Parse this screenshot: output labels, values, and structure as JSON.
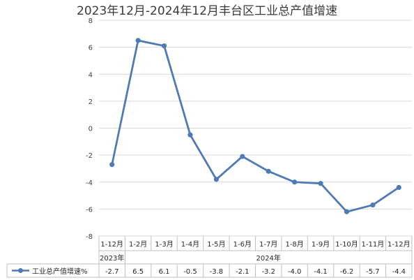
{
  "chart_data": {
    "type": "line",
    "title": "2023年12月-2024年12月丰台区工业总产值增速",
    "ylim": [
      -8,
      8
    ],
    "yticks": [
      8,
      6,
      4,
      2,
      0,
      -2,
      -4,
      -6,
      -8
    ],
    "categories": [
      "1-12月",
      "1-2月",
      "1-3月",
      "1-4月",
      "1-5月",
      "1-6月",
      "1-7月",
      "1-8月",
      "1-9月",
      "1-10月",
      "1-11月",
      "1-12月"
    ],
    "groups": [
      {
        "label": "2023年",
        "start": 0,
        "end": 0
      },
      {
        "label": "2024年",
        "start": 1,
        "end": 11
      }
    ],
    "series": [
      {
        "name": "工业总产值增速%",
        "values": [
          -2.7,
          6.5,
          6.1,
          -0.5,
          -3.8,
          -2.1,
          -3.2,
          -4.0,
          -4.1,
          -6.2,
          -5.7,
          -4.4
        ],
        "labels": [
          "-2.7",
          "6.5",
          "6.1",
          "-0.5",
          "-3.8",
          "-2.1",
          "-3.2",
          "-4.0",
          "-4.1",
          "-6.2",
          "-5.7",
          "-4.4"
        ],
        "color": "#4e7ab5"
      }
    ],
    "grid": true,
    "legend": "data-table-left"
  }
}
